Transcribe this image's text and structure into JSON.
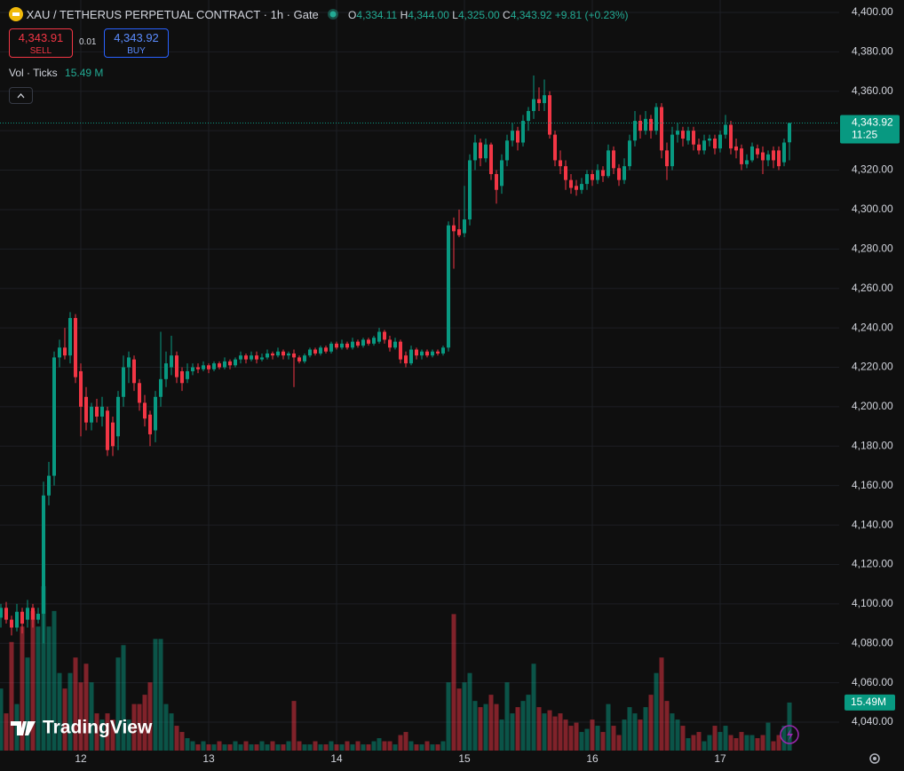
{
  "chart_data": {
    "type": "candlestick",
    "title": "XAU / TETHERUS PERPETUAL CONTRACT · 1h · Gate",
    "legend": {
      "ohlc": [
        {
          "label": "O",
          "value": "4,334.11"
        },
        {
          "label": "H",
          "value": "4,344.00"
        },
        {
          "label": "L",
          "value": "4,325.00"
        },
        {
          "label": "C",
          "value": "4,343.92"
        }
      ],
      "change": "+9.81 (+0.23%)"
    },
    "trade": {
      "sell_price": "4,343.91",
      "sell_label": "SELL",
      "spread": "0.01",
      "buy_price": "4,343.92",
      "buy_label": "BUY"
    },
    "volume_legend": {
      "title": "Vol · Ticks",
      "value": "15.49 M"
    },
    "volume_axis_label": "15.49M",
    "last_price_label": "4,343.92",
    "countdown": "11:25",
    "watermark": "TradingView",
    "up_color": "#089981",
    "down_color": "#f23645",
    "grid": true,
    "ylim": [
      4025.6,
      4406.3
    ],
    "yticks": [
      {
        "value": 4040,
        "label": "4,040.00"
      },
      {
        "value": 4060,
        "label": "4,060.00"
      },
      {
        "value": 4080,
        "label": "4,080.00"
      },
      {
        "value": 4100,
        "label": "4,100.00"
      },
      {
        "value": 4120,
        "label": "4,120.00"
      },
      {
        "value": 4140,
        "label": "4,140.00"
      },
      {
        "value": 4160,
        "label": "4,160.00"
      },
      {
        "value": 4180,
        "label": "4,180.00"
      },
      {
        "value": 4200,
        "label": "4,200.00"
      },
      {
        "value": 4220,
        "label": "4,220.00"
      },
      {
        "value": 4240,
        "label": "4,240.00"
      },
      {
        "value": 4260,
        "label": "4,260.00"
      },
      {
        "value": 4280,
        "label": "4,280.00"
      },
      {
        "value": 4300,
        "label": "4,300.00"
      },
      {
        "value": 4320,
        "label": "4,320.00"
      },
      {
        "value": 4340,
        "label": "4,340.00"
      },
      {
        "value": 4360,
        "label": "4,360.00"
      },
      {
        "value": 4380,
        "label": "4,380.00"
      },
      {
        "value": 4400,
        "label": "4,400.00"
      }
    ],
    "volume_ylim": [
      0,
      242
    ],
    "categories": [
      null,
      null,
      null,
      null,
      null,
      null,
      null,
      null,
      null,
      null,
      null,
      null,
      null,
      null,
      null,
      "12",
      null,
      null,
      null,
      null,
      null,
      null,
      null,
      null,
      null,
      null,
      null,
      null,
      null,
      null,
      null,
      null,
      null,
      null,
      null,
      null,
      null,
      null,
      null,
      "13",
      null,
      null,
      null,
      null,
      null,
      null,
      null,
      null,
      null,
      null,
      null,
      null,
      null,
      null,
      null,
      null,
      null,
      null,
      null,
      null,
      null,
      null,
      null,
      "14",
      null,
      null,
      null,
      null,
      null,
      null,
      null,
      null,
      null,
      null,
      null,
      null,
      null,
      null,
      null,
      null,
      null,
      null,
      null,
      null,
      null,
      null,
      null,
      "15",
      null,
      null,
      null,
      null,
      null,
      null,
      null,
      null,
      null,
      null,
      null,
      null,
      null,
      null,
      null,
      null,
      null,
      null,
      null,
      null,
      null,
      null,
      null,
      "16",
      null,
      null,
      null,
      null,
      null,
      null,
      null,
      null,
      null,
      null,
      null,
      null,
      null,
      null,
      null,
      null,
      null,
      null,
      null,
      null,
      null,
      null,
      null,
      "17",
      null,
      null,
      null,
      null,
      null,
      null,
      null,
      null,
      null,
      null,
      null,
      null,
      null
    ],
    "open": [
      4093,
      4098,
      4092,
      4088,
      4096,
      4092,
      4098,
      4092,
      4095,
      4155,
      4165,
      4225,
      4230,
      4226,
      4245,
      4218,
      4205,
      4192,
      4200,
      4195,
      4198,
      4192,
      4185,
      4205,
      4220,
      4224,
      4212,
      4202,
      4196,
      4188,
      4205,
      4214,
      4220,
      4226,
      4218,
      4214,
      4218,
      4220,
      4219,
      4221,
      4219,
      4222,
      4220,
      4223,
      4221,
      4224,
      4226,
      4224,
      4226,
      4224,
      4225,
      4227,
      4226,
      4228,
      4226,
      4227,
      4225,
      4223,
      4226,
      4229,
      4227,
      4230,
      4228,
      4232,
      4230,
      4232,
      4230,
      4233,
      4231,
      4234,
      4232,
      4233,
      4238,
      4234,
      4230,
      4233,
      4226,
      4222,
      4229,
      4226,
      4228,
      4226,
      4228,
      4227,
      4230,
      4292,
      4290,
      4288,
      4295,
      4325,
      4334,
      4326,
      4333,
      4318,
      4312,
      4325,
      4335,
      4340,
      4334,
      4345,
      4350,
      4356,
      4354,
      4358,
      4338,
      4325,
      4322,
      4315,
      4312,
      4310,
      4313,
      4318,
      4315,
      4320,
      4317,
      4330,
      4321,
      4315,
      4322,
      4335,
      4345,
      4340,
      4346,
      4340,
      4352,
      4330,
      4322,
      4338,
      4340,
      4335,
      4340,
      4333,
      4330,
      4335,
      4336,
      4331,
      4338,
      4343,
      4332,
      4331,
      4323,
      4325,
      4331,
      4329,
      4325,
      4330,
      4330,
      4324,
      4334.11
    ],
    "high": [
      4100,
      4101,
      4094,
      4100,
      4098,
      4102,
      4100,
      4098,
      4162,
      4172,
      4228,
      4234,
      4240,
      4248,
      4247,
      4222,
      4210,
      4202,
      4204,
      4205,
      4200,
      4195,
      4208,
      4226,
      4228,
      4226,
      4214,
      4206,
      4198,
      4208,
      4238,
      4228,
      4236,
      4228,
      4220,
      4222,
      4222,
      4222,
      4223,
      4222,
      4223,
      4223,
      4225,
      4224,
      4225,
      4228,
      4227,
      4228,
      4228,
      4227,
      4229,
      4228,
      4230,
      4229,
      4228,
      4229,
      4226,
      4227,
      4230,
      4230,
      4231,
      4231,
      4233,
      4233,
      4234,
      4233,
      4235,
      4234,
      4235,
      4235,
      4236,
      4240,
      4239,
      4236,
      4235,
      4234,
      4228,
      4231,
      4230,
      4229,
      4229,
      4229,
      4229,
      4231,
      4294,
      4296,
      4300,
      4312,
      4328,
      4338,
      4336,
      4336,
      4334,
      4320,
      4328,
      4338,
      4344,
      4342,
      4348,
      4352,
      4368,
      4362,
      4366,
      4360,
      4340,
      4330,
      4325,
      4318,
      4315,
      4316,
      4320,
      4320,
      4323,
      4322,
      4333,
      4332,
      4323,
      4326,
      4338,
      4350,
      4348,
      4350,
      4348,
      4354,
      4354,
      4334,
      4342,
      4344,
      4342,
      4342,
      4342,
      4336,
      4338,
      4338,
      4338,
      4340,
      4348,
      4345,
      4336,
      4333,
      4328,
      4334,
      4333,
      4332,
      4330,
      4332,
      4332,
      4336,
      4344
    ],
    "low": [
      4088,
      4090,
      4084,
      4086,
      4085,
      4088,
      4088,
      4090,
      4080,
      4150,
      4160,
      4220,
      4224,
      4222,
      4212,
      4185,
      4188,
      4188,
      4192,
      4190,
      4175,
      4175,
      4178,
      4200,
      4212,
      4208,
      4198,
      4190,
      4180,
      4182,
      4200,
      4210,
      4216,
      4212,
      4208,
      4212,
      4216,
      4217,
      4218,
      4217,
      4218,
      4219,
      4219,
      4219,
      4220,
      4222,
      4222,
      4223,
      4222,
      4223,
      4224,
      4224,
      4225,
      4224,
      4224,
      4210,
      4222,
      4222,
      4225,
      4226,
      4226,
      4227,
      4227,
      4229,
      4229,
      4229,
      4229,
      4230,
      4230,
      4231,
      4231,
      4232,
      4232,
      4228,
      4229,
      4222,
      4220,
      4221,
      4224,
      4224,
      4225,
      4225,
      4226,
      4226,
      4228,
      4270,
      4286,
      4286,
      4292,
      4320,
      4322,
      4324,
      4315,
      4303,
      4308,
      4322,
      4332,
      4330,
      4332,
      4340,
      4346,
      4350,
      4350,
      4336,
      4322,
      4318,
      4310,
      4308,
      4307,
      4308,
      4310,
      4312,
      4313,
      4314,
      4316,
      4318,
      4312,
      4313,
      4320,
      4332,
      4336,
      4338,
      4336,
      4338,
      4326,
      4315,
      4320,
      4334,
      4332,
      4333,
      4330,
      4328,
      4328,
      4332,
      4328,
      4329,
      4336,
      4328,
      4326,
      4320,
      4321,
      4324,
      4326,
      4318,
      4322,
      4321,
      4320,
      4322,
      4325
    ],
    "close": [
      4098,
      4092,
      4088,
      4096,
      4090,
      4098,
      4092,
      4095,
      4155,
      4165,
      4225,
      4230,
      4226,
      4245,
      4215,
      4200,
      4192,
      4200,
      4195,
      4200,
      4178,
      4180,
      4205,
      4220,
      4225,
      4212,
      4202,
      4194,
      4186,
      4205,
      4214,
      4222,
      4226,
      4215,
      4212,
      4218,
      4220,
      4219,
      4221,
      4219,
      4222,
      4220,
      4223,
      4221,
      4224,
      4226,
      4224,
      4226,
      4224,
      4225,
      4227,
      4226,
      4228,
      4226,
      4227,
      4225,
      4223,
      4226,
      4229,
      4227,
      4230,
      4228,
      4232,
      4230,
      4232,
      4230,
      4233,
      4231,
      4234,
      4232,
      4235,
      4238,
      4234,
      4230,
      4233,
      4224,
      4222,
      4229,
      4226,
      4228,
      4226,
      4228,
      4227,
      4230,
      4292,
      4289,
      4287,
      4295,
      4325,
      4334,
      4326,
      4333,
      4318,
      4310,
      4325,
      4335,
      4340,
      4334,
      4345,
      4350,
      4356,
      4354,
      4358,
      4338,
      4325,
      4322,
      4315,
      4311,
      4310,
      4313,
      4318,
      4315,
      4320,
      4317,
      4330,
      4321,
      4315,
      4322,
      4335,
      4345,
      4340,
      4346,
      4340,
      4352,
      4330,
      4322,
      4338,
      4340,
      4336,
      4340,
      4333,
      4330,
      4335,
      4336,
      4331,
      4338,
      4343,
      4331,
      4330,
      4323,
      4325,
      4332,
      4328,
      4325,
      4328,
      4325,
      4322,
      4334,
      4343.92
    ],
    "volume": [
      20,
      12,
      35,
      15,
      40,
      30,
      45,
      40,
      53,
      40,
      45,
      25,
      20,
      25,
      30,
      22,
      28,
      22,
      12,
      10,
      12,
      10,
      30,
      34,
      10,
      15,
      15,
      18,
      22,
      36,
      36,
      15,
      12,
      8,
      6,
      4,
      3,
      2,
      3,
      2,
      2,
      3,
      2,
      2,
      3,
      2,
      3,
      2,
      2,
      3,
      2,
      3,
      2,
      2,
      3,
      16,
      3,
      2,
      2,
      3,
      2,
      2,
      3,
      2,
      2,
      3,
      2,
      3,
      2,
      2,
      3,
      4,
      3,
      3,
      2,
      5,
      6,
      3,
      2,
      2,
      3,
      2,
      2,
      3,
      22,
      44,
      20,
      22,
      25,
      16,
      14,
      15,
      18,
      15,
      10,
      22,
      12,
      14,
      16,
      18,
      28,
      14,
      12,
      13,
      11,
      12,
      10,
      8,
      9,
      6,
      7,
      10,
      8,
      6,
      15,
      8,
      5,
      10,
      14,
      12,
      10,
      14,
      18,
      25,
      30,
      16,
      12,
      10,
      8,
      4,
      5,
      6,
      3,
      5,
      8,
      6,
      8,
      5,
      4,
      6,
      5,
      5,
      4,
      5,
      9,
      3,
      5,
      8,
      15.49
    ]
  }
}
